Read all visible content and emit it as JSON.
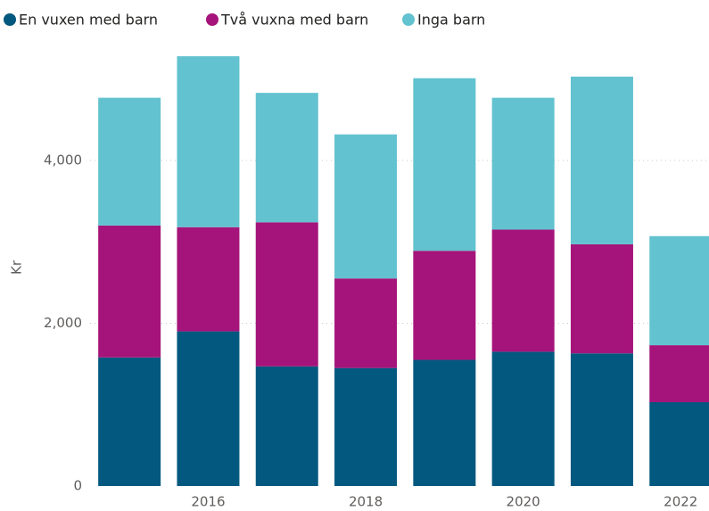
{
  "chart_data": {
    "type": "stacked_bar",
    "categories": [
      null,
      "2016",
      null,
      "2018",
      null,
      "2020",
      null,
      "2022"
    ],
    "series": [
      {
        "name": "En vuxen med barn",
        "color": "#03587f",
        "values": [
          1580,
          1900,
          1470,
          1450,
          1550,
          1650,
          1630,
          1030
        ]
      },
      {
        "name": "Två vuxna med barn",
        "color": "#a5147a",
        "values": [
          1620,
          1280,
          1770,
          1100,
          1340,
          1500,
          1340,
          700
        ]
      },
      {
        "name": "Inga barn",
        "color": "#63c2cf",
        "values": [
          1570,
          2100,
          1590,
          1770,
          2120,
          1620,
          2060,
          1340
        ]
      }
    ],
    "ylabel": "Kr",
    "ylim": [
      0,
      5500
    ],
    "yticks": [
      0,
      {
        "value": 2000,
        "label": "2,000"
      },
      {
        "value": 4000,
        "label": "4,000"
      }
    ],
    "grid": true,
    "legend": "top"
  }
}
